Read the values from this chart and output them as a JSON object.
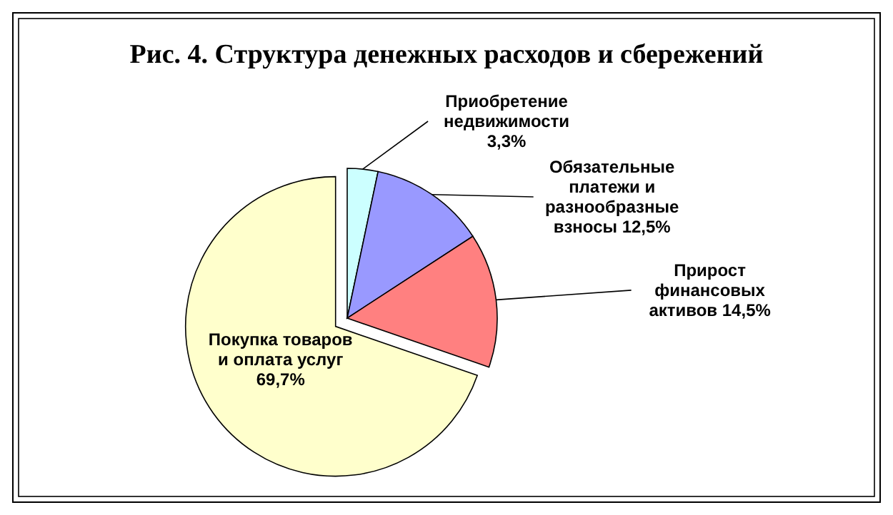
{
  "chart_data": {
    "type": "pie",
    "title": "Рис. 4. Структура денежных расходов и сбережений",
    "categories": [
      "Приобретение недвижимости",
      "Обязательные платежи и разнообразные взносы",
      "Прирост финансовых активов",
      "Покупка товаров и оплата услуг"
    ],
    "values": [
      3.3,
      12.5,
      14.5,
      69.7
    ],
    "value_labels": [
      "3,3%",
      "12,5%",
      "14,5%",
      "69,7%"
    ],
    "colors": [
      "#ccffff",
      "#9999ff",
      "#ff8080",
      "#ffffcc"
    ]
  }
}
